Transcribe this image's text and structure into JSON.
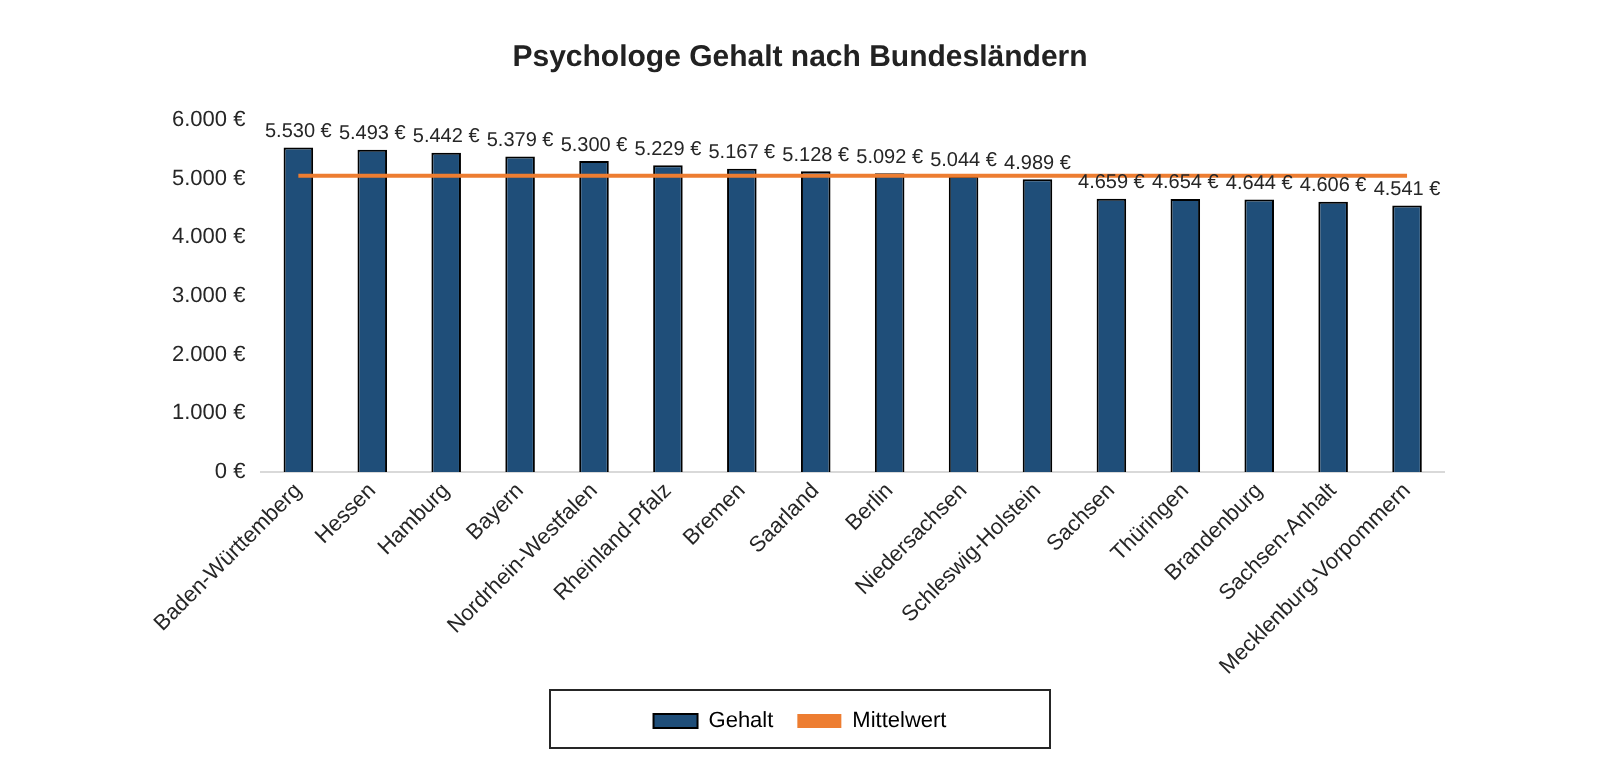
{
  "chart_data": {
    "type": "bar",
    "title": "Psychologe Gehalt nach Bundesländern",
    "categories": [
      "Baden-Württemberg",
      "Hessen",
      "Hamburg",
      "Bayern",
      "Nordrhein-Westfalen",
      "Rheinland-Pfalz",
      "Bremen",
      "Saarland",
      "Berlin",
      "Niedersachsen",
      "Schleswig-Holstein",
      "Sachsen",
      "Thüringen",
      "Brandenburg",
      "Sachsen-Anhalt",
      "Mecklenburg-Vorpommern"
    ],
    "series": [
      {
        "name": "Gehalt",
        "color": "#1f4e79",
        "values": [
          5530,
          5493,
          5442,
          5379,
          5300,
          5229,
          5167,
          5128,
          5092,
          5044,
          4989,
          4659,
          4654,
          4644,
          4606,
          4541
        ],
        "value_labels": [
          "5.530 €",
          "5.493 €",
          "5.442 €",
          "5.379 €",
          "5.300 €",
          "5.229 €",
          "5.167 €",
          "5.128 €",
          "5.092 €",
          "5.044 €",
          "4.989 €",
          "4.659 €",
          "4.654 €",
          "4.644 €",
          "4.606 €",
          "4.541 €"
        ]
      },
      {
        "name": "Mittelwert",
        "type": "line",
        "color": "#ed7d31",
        "marker": "none",
        "values": [
          5050,
          5050,
          5050,
          5050,
          5050,
          5050,
          5050,
          5050,
          5050,
          5050,
          5050,
          5050,
          5050,
          5050,
          5050,
          5050
        ]
      }
    ],
    "ylim": [
      0,
      6000
    ],
    "yticks": [
      {
        "value": 0,
        "label": "0 €"
      },
      {
        "value": 1000,
        "label": "1.000 €"
      },
      {
        "value": 2000,
        "label": "2.000 €"
      },
      {
        "value": 3000,
        "label": "3.000 €"
      },
      {
        "value": 4000,
        "label": "4.000 €"
      },
      {
        "value": 5000,
        "label": "5.000 €"
      },
      {
        "value": 6000,
        "label": "6.000 €"
      }
    ],
    "grid": false,
    "legend": "bottom"
  }
}
